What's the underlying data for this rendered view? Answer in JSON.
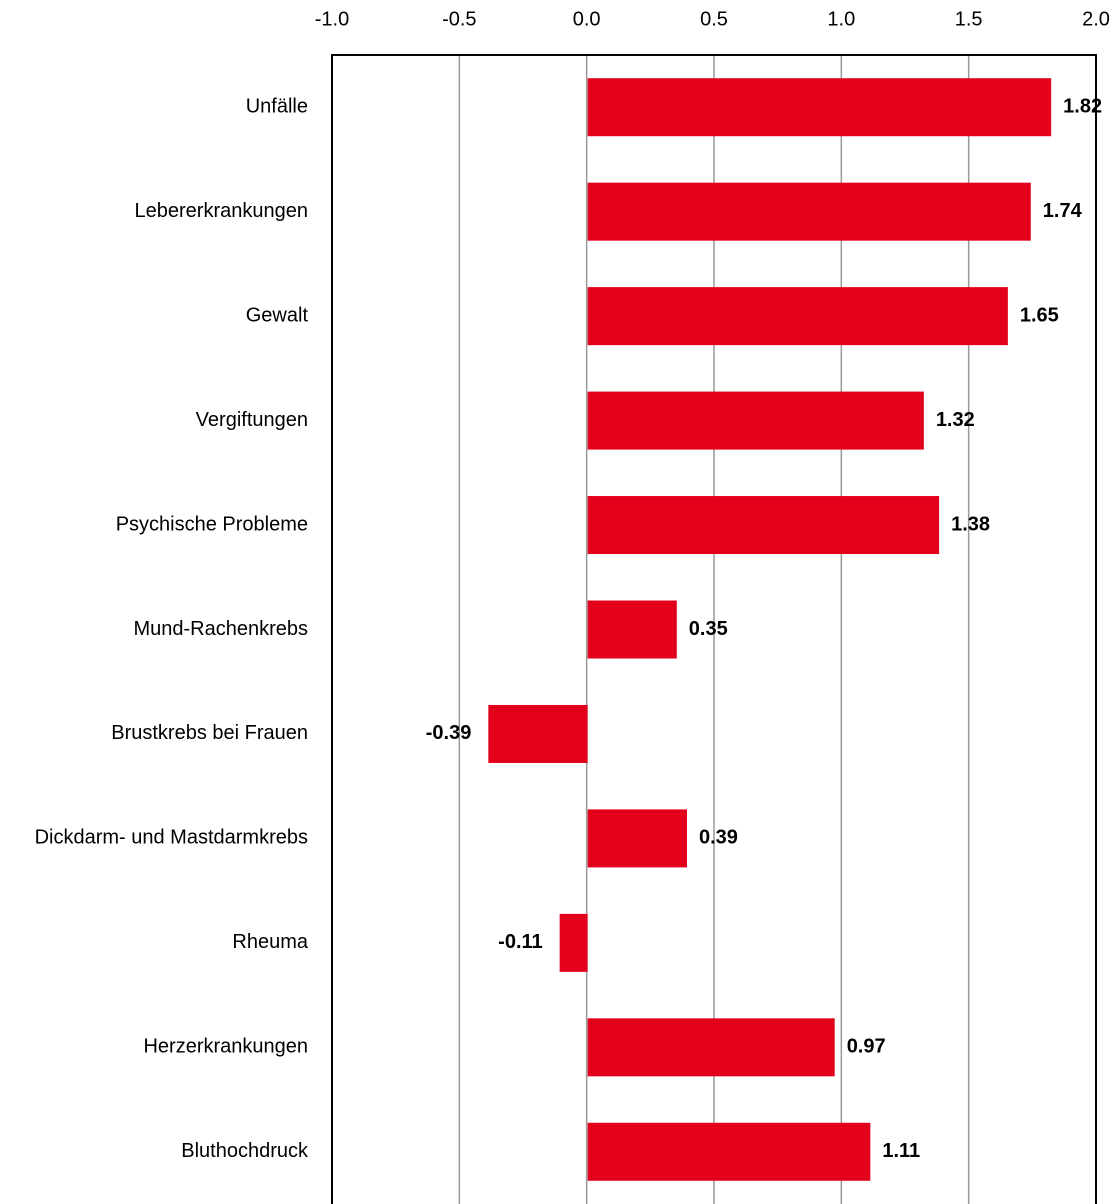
{
  "chart_data": {
    "type": "bar",
    "orientation": "horizontal",
    "categories": [
      "Unfälle",
      "Lebererkrankungen",
      "Gewalt",
      "Vergiftungen",
      "Psychische Probleme",
      "Mund-Rachenkrebs",
      "Brustkrebs bei Frauen",
      "Dickdarm- und Mastdarmkrebs",
      "Rheuma",
      "Herzerkrankungen",
      "Bluthochdruck"
    ],
    "values": [
      1.82,
      1.74,
      1.65,
      1.32,
      1.38,
      0.35,
      -0.39,
      0.39,
      -0.11,
      0.97,
      1.11
    ],
    "color": "#e2001a",
    "xlim": [
      -1,
      2
    ],
    "xticks": [
      {
        "value": -1,
        "label": "-1.0"
      },
      -0.5,
      {
        "value": 0,
        "label": "0.0"
      },
      0.5,
      {
        "value": 1,
        "label": "1.0"
      },
      1.5,
      {
        "value": 2,
        "label": "2.0"
      }
    ],
    "grid": true
  }
}
